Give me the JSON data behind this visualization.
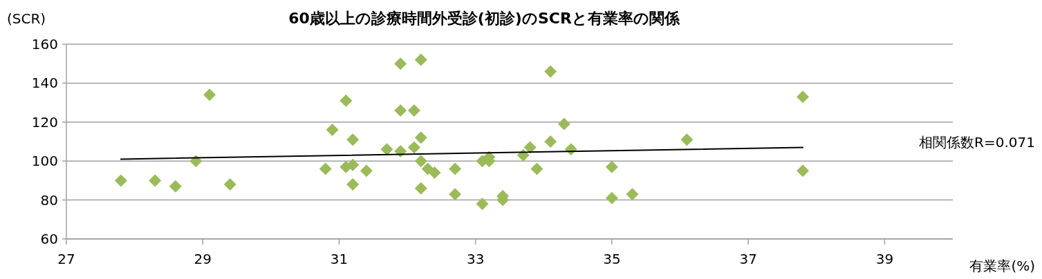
{
  "chart_data": {
    "type": "scatter",
    "title": "60歳以上の診療時間外受診(初診)のSCRと有業率の関係",
    "xlabel": "有業率(%)",
    "ylabel": "(SCR)",
    "annotations": [
      "相関係数R=0.071"
    ],
    "xlim": [
      27,
      40
    ],
    "ylim": [
      60,
      160
    ],
    "xticks": [
      27,
      29,
      31,
      33,
      35,
      37,
      39
    ],
    "yticks": [
      60,
      80,
      100,
      120,
      140,
      160
    ],
    "grid": "y",
    "marker": "diamond",
    "series": [
      {
        "color": "#9bbb59",
        "x": [
          27.8,
          28.3,
          28.6,
          28.9,
          29.1,
          29.4,
          30.8,
          30.9,
          31.1,
          31.1,
          31.2,
          31.2,
          31.2,
          31.4,
          31.7,
          31.9,
          31.9,
          31.9,
          32.1,
          32.1,
          32.2,
          32.2,
          32.2,
          32.2,
          32.3,
          32.4,
          32.7,
          32.7,
          33.1,
          33.1,
          33.2,
          33.2,
          33.4,
          33.4,
          33.7,
          33.8,
          33.9,
          34.1,
          34.1,
          34.3,
          34.4,
          35,
          35,
          35.3,
          36.1,
          37.8,
          37.8
        ],
        "values": [
          90,
          90,
          87,
          100,
          134,
          88,
          96,
          116,
          97,
          131,
          98,
          111,
          88,
          95,
          106,
          150,
          126,
          105,
          126,
          107,
          152,
          112,
          100,
          86,
          96,
          94,
          96,
          83,
          78,
          100,
          102,
          100,
          82,
          80,
          103,
          107,
          96,
          146,
          110,
          119,
          106,
          97,
          81,
          83,
          111,
          133,
          95
        ]
      },
      {
        "type": "line",
        "color": "#000000",
        "marker": "none",
        "line_style": "solid",
        "x": [
          27.8,
          37.8
        ],
        "values": [
          101,
          107
        ]
      }
    ]
  }
}
